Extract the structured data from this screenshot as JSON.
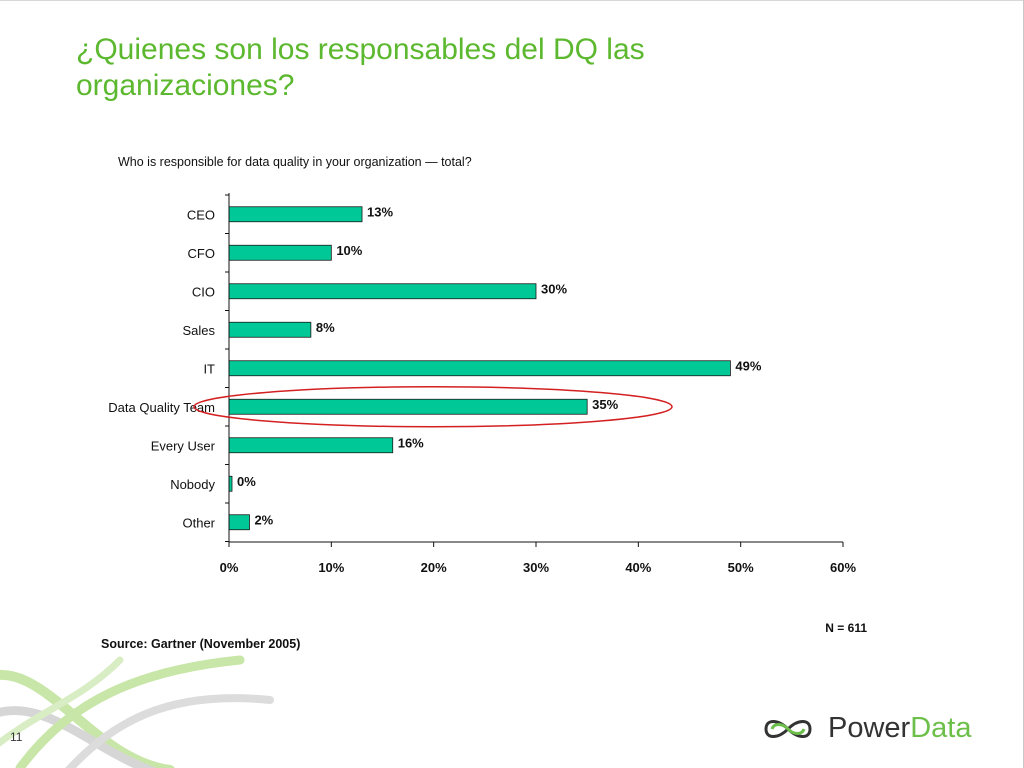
{
  "slide": {
    "title": "¿Quienes son los responsables del DQ las organizaciones?",
    "number": "11"
  },
  "logo": {
    "word_power": "Power",
    "word_data": "Data"
  },
  "colors": {
    "title": "#5cb82e",
    "bar": "#00c896",
    "bar_stroke": "#1a1a1a",
    "highlight": "#d42020",
    "brand_green": "#6cc04a"
  },
  "chart_data": {
    "type": "bar",
    "orientation": "horizontal",
    "title": "Who is responsible for data quality in your organization — total?",
    "categories": [
      "CEO",
      "CFO",
      "CIO",
      "Sales",
      "IT",
      "Data Quality Team",
      "Every User",
      "Nobody",
      "Other"
    ],
    "values": [
      13,
      10,
      30,
      8,
      49,
      35,
      16,
      0,
      2
    ],
    "value_labels": [
      "13%",
      "10%",
      "30%",
      "8%",
      "49%",
      "35%",
      "16%",
      "0%",
      "2%"
    ],
    "x_ticks": [
      0,
      10,
      20,
      30,
      40,
      50,
      60
    ],
    "x_tick_labels": [
      "0%",
      "10%",
      "20%",
      "30%",
      "40%",
      "50%",
      "60%"
    ],
    "xlim": [
      0,
      60
    ],
    "grid": false,
    "highlighted_category": "Data Quality Team",
    "sample_note": "N = 611",
    "source": "Source: Gartner (November 2005)"
  }
}
